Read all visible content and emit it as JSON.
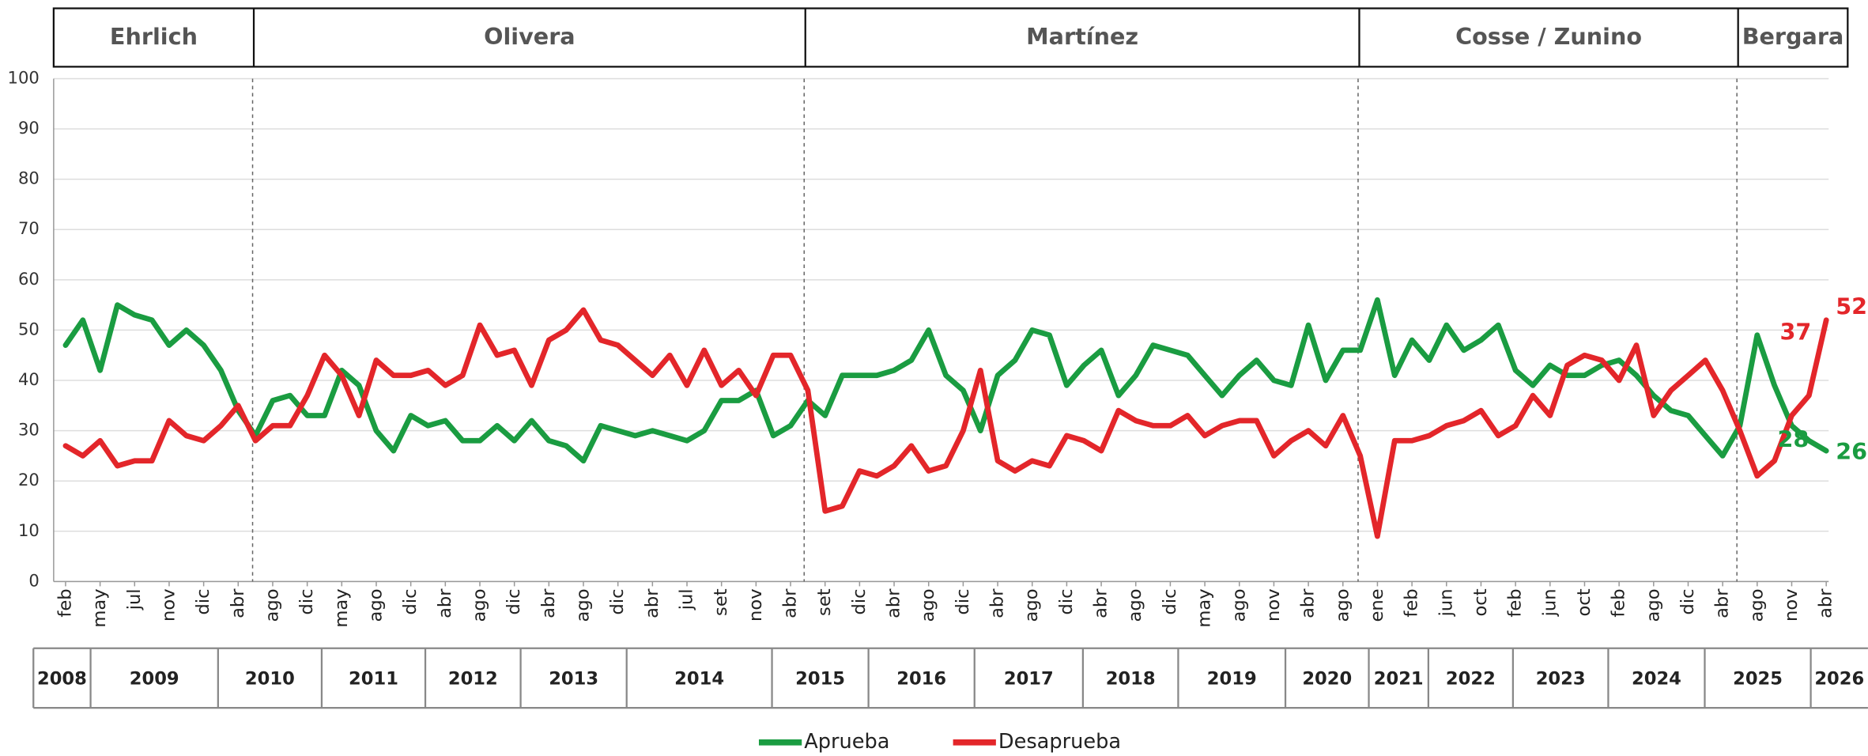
{
  "chart_data": {
    "type": "line",
    "periods": [
      "Ehrlich",
      "Olivera",
      "Martínez",
      "Cosse / Zunino",
      "Bergara"
    ],
    "years": [
      "2008",
      "2009",
      "2010",
      "2011",
      "2012",
      "2013",
      "2014",
      "2015",
      "2016",
      "2017",
      "2018",
      "2019",
      "2020",
      "2021",
      "2022",
      "2023",
      "2024",
      "2025",
      "2026"
    ],
    "categories": [
      "feb",
      null,
      "may",
      null,
      "jul",
      null,
      "nov",
      null,
      "dic",
      null,
      "abr",
      null,
      "ago",
      null,
      "dic",
      null,
      "may",
      null,
      "ago",
      null,
      "dic",
      null,
      "abr",
      null,
      "ago",
      null,
      "dic",
      null,
      "abr",
      null,
      "ago",
      null,
      "dic",
      null,
      "abr",
      null,
      "jul",
      null,
      "set",
      null,
      "nov",
      null,
      "abr",
      null,
      "set",
      null,
      "dic",
      null,
      "abr",
      null,
      "ago",
      null,
      "dic",
      null,
      "abr",
      null,
      "ago",
      null,
      "dic",
      null,
      "abr",
      null,
      "ago",
      null,
      "dic",
      null,
      "may",
      null,
      "ago",
      null,
      "nov",
      null,
      "abr",
      null,
      "ago",
      null,
      "ene",
      null,
      "feb",
      null,
      "jun",
      null,
      "oct",
      null,
      "feb",
      null,
      "jun",
      null,
      "oct",
      null,
      "feb",
      null,
      "ago",
      null,
      "dic",
      null,
      "abr",
      null,
      "ago",
      null,
      "nov",
      null,
      "abr"
    ],
    "series": [
      {
        "name": "Aprueba",
        "color": "#1a9c41",
        "values": [
          47,
          52,
          42,
          55,
          53,
          52,
          47,
          50,
          47,
          42,
          34,
          29,
          36,
          37,
          33,
          33,
          42,
          39,
          30,
          26,
          33,
          31,
          32,
          28,
          28,
          31,
          28,
          32,
          28,
          27,
          24,
          31,
          30,
          29,
          30,
          29,
          28,
          30,
          36,
          36,
          38,
          29,
          31,
          36,
          33,
          41,
          41,
          41,
          42,
          44,
          50,
          41,
          38,
          30,
          41,
          44,
          50,
          49,
          39,
          43,
          46,
          37,
          41,
          47,
          46,
          45,
          41,
          37,
          41,
          44,
          40,
          39,
          51,
          40,
          46,
          46,
          56,
          41,
          48,
          44,
          51,
          46,
          48,
          51,
          42,
          39,
          43,
          41,
          41,
          43,
          44,
          41,
          37,
          34,
          33,
          29,
          25,
          31,
          49,
          39,
          31,
          28,
          26
        ],
        "value_labels": [
          null,
          null,
          null,
          null,
          null,
          null,
          null,
          null,
          null,
          null,
          null,
          null,
          null,
          null,
          null,
          null,
          null,
          null,
          null,
          null,
          null,
          null,
          null,
          null,
          null,
          null,
          null,
          null,
          null,
          null,
          null,
          null,
          null,
          null,
          null,
          null,
          null,
          null,
          null,
          null,
          null,
          null,
          null,
          null,
          null,
          null,
          null,
          null,
          null,
          null,
          null,
          null,
          null,
          null,
          null,
          null,
          null,
          null,
          null,
          null,
          null,
          null,
          null,
          null,
          null,
          null,
          null,
          null,
          null,
          null,
          null,
          null,
          null,
          null,
          null,
          null,
          null,
          null,
          null,
          null,
          null,
          null,
          null,
          null,
          null,
          null,
          null,
          null,
          null,
          null,
          null,
          null,
          null,
          null,
          null,
          null,
          null,
          null,
          null,
          null,
          null,
          "28",
          "26"
        ]
      },
      {
        "name": "Desaprueba",
        "color": "#e3262a",
        "values": [
          27,
          25,
          28,
          23,
          24,
          24,
          32,
          29,
          28,
          31,
          35,
          28,
          31,
          31,
          37,
          45,
          41,
          33,
          44,
          41,
          41,
          42,
          39,
          41,
          51,
          45,
          46,
          39,
          48,
          50,
          54,
          48,
          47,
          44,
          41,
          45,
          39,
          46,
          39,
          42,
          37,
          45,
          45,
          38,
          14,
          15,
          22,
          21,
          23,
          27,
          22,
          23,
          30,
          42,
          24,
          22,
          24,
          23,
          29,
          28,
          26,
          34,
          32,
          31,
          31,
          33,
          29,
          31,
          32,
          32,
          25,
          28,
          30,
          27,
          33,
          25,
          9,
          28,
          28,
          29,
          31,
          32,
          34,
          29,
          31,
          37,
          33,
          43,
          45,
          44,
          40,
          47,
          33,
          38,
          41,
          44,
          38,
          30,
          21,
          24,
          33,
          37,
          52
        ],
        "value_labels": [
          null,
          null,
          null,
          null,
          null,
          null,
          null,
          null,
          null,
          null,
          null,
          null,
          null,
          null,
          null,
          null,
          null,
          null,
          null,
          null,
          null,
          null,
          null,
          null,
          null,
          null,
          null,
          null,
          null,
          null,
          null,
          null,
          null,
          null,
          null,
          null,
          null,
          null,
          null,
          null,
          null,
          null,
          null,
          null,
          null,
          null,
          null,
          null,
          null,
          null,
          null,
          null,
          null,
          null,
          null,
          null,
          null,
          null,
          null,
          null,
          null,
          null,
          null,
          null,
          null,
          null,
          null,
          null,
          null,
          null,
          null,
          null,
          null,
          null,
          null,
          null,
          null,
          null,
          null,
          null,
          null,
          null,
          null,
          null,
          null,
          null,
          null,
          null,
          null,
          null,
          null,
          null,
          null,
          null,
          null,
          null,
          null,
          null,
          null,
          null,
          null,
          "37",
          "52"
        ]
      }
    ],
    "ylim": [
      0,
      100
    ],
    "yticks": [
      0,
      10,
      20,
      30,
      40,
      50,
      60,
      70,
      80,
      90,
      100
    ],
    "grid": true
  }
}
